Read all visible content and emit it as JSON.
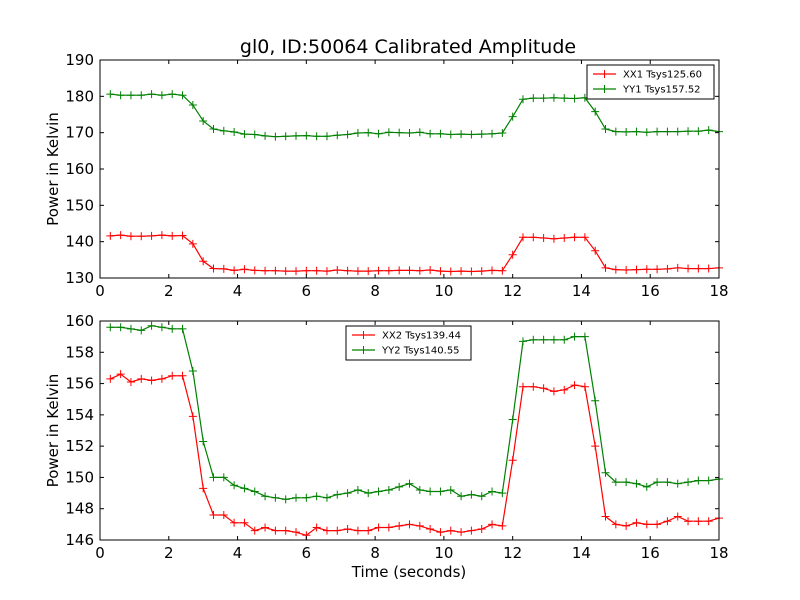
{
  "figure": {
    "title": "gl0, ID:50064 Calibrated Amplitude",
    "xlabel": "Time (seconds)"
  },
  "chart_data": [
    {
      "type": "line",
      "title": "gl0, ID:50064 Calibrated Amplitude",
      "xlabel": "",
      "ylabel": "Power in Kelvin",
      "xlim": [
        0,
        18
      ],
      "ylim": [
        130,
        190
      ],
      "xticks": [
        0,
        2,
        4,
        6,
        8,
        10,
        12,
        14,
        16,
        18
      ],
      "yticks": [
        130,
        140,
        150,
        160,
        170,
        180,
        190
      ],
      "grid": false,
      "legend_position": "top-right",
      "x": [
        0.3,
        0.6,
        0.9,
        1.2,
        1.5,
        1.8,
        2.1,
        2.4,
        2.7,
        3.0,
        3.3,
        3.6,
        3.9,
        4.2,
        4.5,
        4.8,
        5.1,
        5.4,
        5.7,
        6.0,
        6.3,
        6.6,
        6.9,
        7.2,
        7.5,
        7.8,
        8.1,
        8.4,
        8.7,
        9.0,
        9.3,
        9.6,
        9.9,
        10.2,
        10.5,
        10.8,
        11.1,
        11.4,
        11.7,
        12.0,
        12.3,
        12.6,
        12.9,
        13.2,
        13.5,
        13.8,
        14.1,
        14.4,
        14.7,
        15.0,
        15.3,
        15.6,
        15.9,
        16.2,
        16.5,
        16.8,
        17.1,
        17.4,
        17.7,
        18.0
      ],
      "series": [
        {
          "name": "XX1 Tsys125.60",
          "color": "#ff0000",
          "values": [
            141.6,
            141.8,
            141.5,
            141.5,
            141.6,
            141.8,
            141.6,
            141.7,
            139.4,
            134.6,
            132.6,
            132.5,
            132.1,
            132.4,
            132.1,
            132.0,
            132.0,
            131.9,
            131.9,
            132.0,
            132.0,
            131.9,
            132.2,
            132.0,
            131.9,
            131.9,
            132.0,
            132.0,
            132.1,
            132.1,
            132.0,
            132.2,
            131.9,
            131.8,
            131.9,
            131.8,
            131.9,
            132.1,
            132.0,
            136.4,
            141.2,
            141.2,
            141.0,
            140.8,
            141.0,
            141.2,
            141.2,
            137.5,
            132.8,
            132.3,
            132.2,
            132.3,
            132.4,
            132.4,
            132.5,
            132.8,
            132.6,
            132.6,
            132.6,
            132.8
          ]
        },
        {
          "name": "YY1 Tsys157.52",
          "color": "#008000",
          "values": [
            180.6,
            180.3,
            180.3,
            180.3,
            180.6,
            180.3,
            180.6,
            180.3,
            177.6,
            173.2,
            171.0,
            170.5,
            170.2,
            169.6,
            169.5,
            169.1,
            168.9,
            169.0,
            169.1,
            169.2,
            169.0,
            169.0,
            169.3,
            169.5,
            169.9,
            170.0,
            169.7,
            170.1,
            170.0,
            169.9,
            170.1,
            169.7,
            169.7,
            169.5,
            169.6,
            169.5,
            169.6,
            169.7,
            169.9,
            174.4,
            179.2,
            179.5,
            179.5,
            179.6,
            179.5,
            179.4,
            179.6,
            175.8,
            171.0,
            170.3,
            170.2,
            170.3,
            170.1,
            170.3,
            170.3,
            170.3,
            170.4,
            170.4,
            170.7,
            170.3
          ]
        }
      ]
    },
    {
      "type": "line",
      "title": "",
      "xlabel": "Time (seconds)",
      "ylabel": "Power in Kelvin",
      "xlim": [
        0,
        18
      ],
      "ylim": [
        146,
        160
      ],
      "xticks": [
        0,
        2,
        4,
        6,
        8,
        10,
        12,
        14,
        16,
        18
      ],
      "yticks": [
        146,
        148,
        150,
        152,
        154,
        156,
        158,
        160
      ],
      "grid": false,
      "legend_position": "top-center",
      "x": [
        0.3,
        0.6,
        0.9,
        1.2,
        1.5,
        1.8,
        2.1,
        2.4,
        2.7,
        3.0,
        3.3,
        3.6,
        3.9,
        4.2,
        4.5,
        4.8,
        5.1,
        5.4,
        5.7,
        6.0,
        6.3,
        6.6,
        6.9,
        7.2,
        7.5,
        7.8,
        8.1,
        8.4,
        8.7,
        9.0,
        9.3,
        9.6,
        9.9,
        10.2,
        10.5,
        10.8,
        11.1,
        11.4,
        11.7,
        12.0,
        12.3,
        12.6,
        12.9,
        13.2,
        13.5,
        13.8,
        14.1,
        14.4,
        14.7,
        15.0,
        15.3,
        15.6,
        15.9,
        16.2,
        16.5,
        16.8,
        17.1,
        17.4,
        17.7,
        18.0
      ],
      "series": [
        {
          "name": "XX2 Tsys139.44",
          "color": "#ff0000",
          "values": [
            156.3,
            156.6,
            156.1,
            156.3,
            156.2,
            156.3,
            156.5,
            156.5,
            153.9,
            149.3,
            147.6,
            147.6,
            147.1,
            147.1,
            146.6,
            146.8,
            146.6,
            146.6,
            146.5,
            146.3,
            146.8,
            146.6,
            146.6,
            146.7,
            146.6,
            146.6,
            146.8,
            146.8,
            146.9,
            147.0,
            146.9,
            146.7,
            146.5,
            146.6,
            146.5,
            146.6,
            146.7,
            147.0,
            146.9,
            151.1,
            155.8,
            155.8,
            155.7,
            155.5,
            155.6,
            155.9,
            155.8,
            152.0,
            147.5,
            147.0,
            146.9,
            147.1,
            147.0,
            147.0,
            147.2,
            147.5,
            147.2,
            147.2,
            147.2,
            147.4
          ]
        },
        {
          "name": "YY2 Tsys140.55",
          "color": "#008000",
          "values": [
            159.6,
            159.6,
            159.5,
            159.4,
            159.7,
            159.6,
            159.5,
            159.5,
            156.8,
            152.3,
            150.0,
            150.0,
            149.5,
            149.3,
            149.1,
            148.8,
            148.7,
            148.6,
            148.7,
            148.7,
            148.8,
            148.7,
            148.9,
            149.0,
            149.2,
            149.0,
            149.1,
            149.2,
            149.4,
            149.6,
            149.2,
            149.1,
            149.1,
            149.2,
            148.8,
            148.9,
            148.8,
            149.1,
            149.0,
            153.7,
            158.7,
            158.8,
            158.8,
            158.8,
            158.8,
            159.0,
            159.0,
            154.9,
            150.3,
            149.7,
            149.7,
            149.6,
            149.4,
            149.7,
            149.7,
            149.6,
            149.7,
            149.8,
            149.8,
            149.9
          ]
        }
      ]
    }
  ]
}
